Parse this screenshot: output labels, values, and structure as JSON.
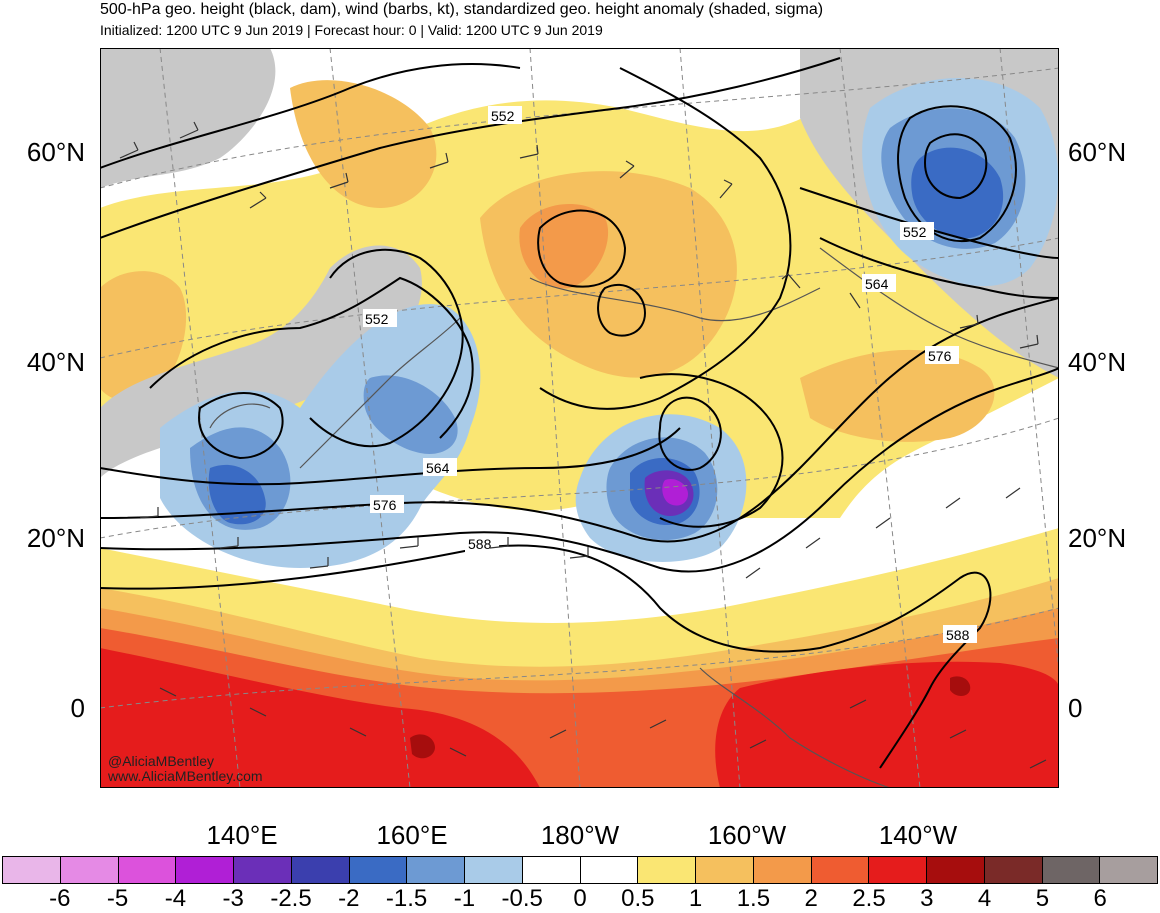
{
  "header": {
    "title": "500-hPa geo. height (black, dam), wind (barbs, kt), standardized geo. height anomaly (shaded, sigma)",
    "subtitle": "Initialized: 1200 UTC 9 Jun 2019 | Forecast hour: 0 | Valid: 1200 UTC 9 Jun 2019"
  },
  "axes": {
    "lat_labels": [
      "60°N",
      "40°N",
      "20°N",
      "0"
    ],
    "lon_labels": [
      "140°E",
      "160°E",
      "180°W",
      "160°W",
      "140°W"
    ]
  },
  "contours": {
    "labels": [
      "552",
      "552",
      "552",
      "564",
      "564",
      "576",
      "576",
      "588",
      "588"
    ]
  },
  "colors": {
    "ocean_neutral": "#ffffff",
    "land_gray": "#c8c8c8",
    "coast": "#555555",
    "contour": "#000000"
  },
  "colorbar": {
    "labels": [
      "-6",
      "-5",
      "-4",
      "-3",
      "-2.5",
      "-2",
      "-1.5",
      "-1",
      "-0.5",
      "0",
      "0.5",
      "1",
      "1.5",
      "2",
      "2.5",
      "3",
      "4",
      "5",
      "6"
    ],
    "colors": [
      "#e9b6e9",
      "#e58ae5",
      "#dc52dc",
      "#b01fd6",
      "#6b2fb8",
      "#3b3fae",
      "#3a6bc4",
      "#6d9ad3",
      "#a9cbe8",
      "#ffffff",
      "#ffffff",
      "#fae673",
      "#f5c05e",
      "#f39a4a",
      "#ef5c31",
      "#e51c1c",
      "#a60d0d",
      "#7a2a28",
      "#6e6565",
      "#a79e9e"
    ]
  },
  "credits": {
    "handle": "@AliciaMBentley",
    "site": "www.AliciaMBentley.com"
  }
}
